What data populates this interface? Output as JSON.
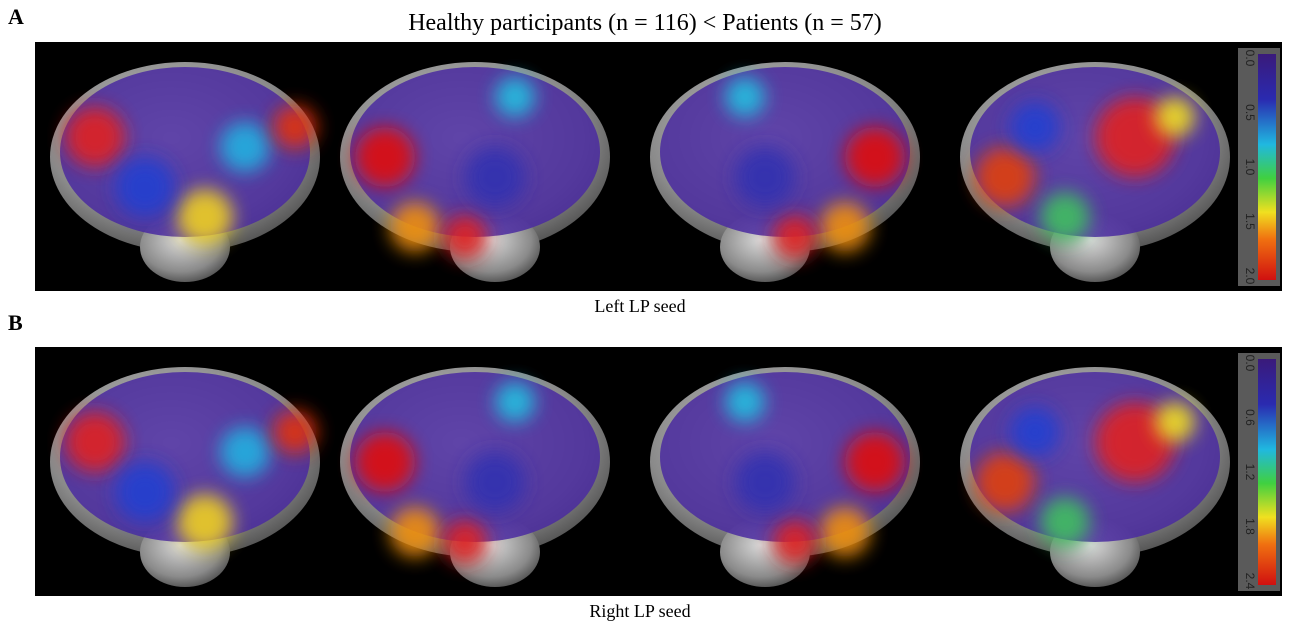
{
  "title": "Healthy participants (n = 116) < Patients (n = 57)",
  "panels": [
    {
      "label": "A",
      "caption": "Left LP seed",
      "colorbar_ticks": [
        "0.0",
        "0.5",
        "1.0",
        "1.5",
        "2.0"
      ]
    },
    {
      "label": "B",
      "caption": "Right LP seed",
      "colorbar_ticks": [
        "0.0",
        "0.6",
        "1.2",
        "1.8",
        "2.4"
      ]
    }
  ]
}
